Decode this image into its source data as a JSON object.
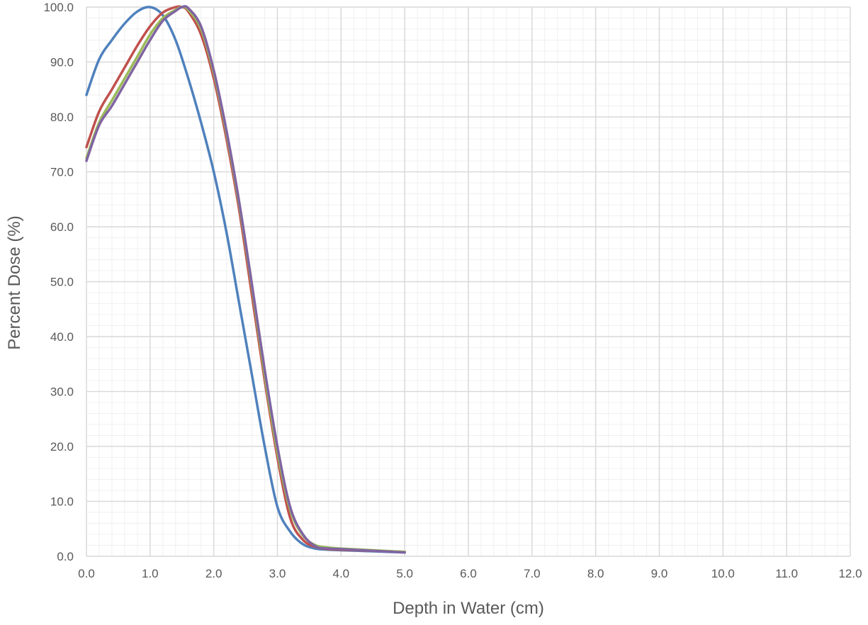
{
  "chart_data": {
    "type": "line",
    "title": "",
    "xlabel": "Depth in Water (cm)",
    "ylabel": "Percent Dose (%)",
    "xlim": [
      0,
      12
    ],
    "ylim": [
      0,
      100
    ],
    "x_ticks": [
      0,
      1,
      2,
      3,
      4,
      5,
      6,
      7,
      8,
      9,
      10,
      11,
      12
    ],
    "y_ticks": [
      0,
      10,
      20,
      30,
      40,
      50,
      60,
      70,
      80,
      90,
      100
    ],
    "x_tick_labels": [
      "0.0",
      "1.0",
      "2.0",
      "3.0",
      "4.0",
      "5.0",
      "6.0",
      "7.0",
      "8.0",
      "9.0",
      "10.0",
      "11.0",
      "12.0"
    ],
    "y_tick_labels": [
      "0.0",
      "10.0",
      "20.0",
      "30.0",
      "40.0",
      "50.0",
      "60.0",
      "70.0",
      "80.0",
      "90.0",
      "100.0"
    ],
    "grid": "major and minor",
    "legend": "none",
    "series": [
      {
        "color": "#4F81BD",
        "x": [
          0.0,
          0.2,
          0.4,
          0.6,
          0.8,
          1.0,
          1.2,
          1.4,
          1.6,
          1.8,
          2.0,
          2.2,
          2.4,
          2.6,
          2.8,
          3.0,
          3.2,
          3.4,
          3.6,
          3.8,
          4.0,
          4.5,
          5.0
        ],
        "y": [
          84.0,
          90.5,
          94.0,
          97.0,
          99.2,
          100.0,
          98.5,
          94.0,
          87.0,
          79.0,
          70.0,
          59.0,
          46.0,
          33.0,
          20.0,
          9.0,
          4.5,
          2.2,
          1.4,
          1.2,
          1.1,
          0.9,
          0.7
        ]
      },
      {
        "color": "#C0504D",
        "x": [
          0.0,
          0.2,
          0.4,
          0.6,
          0.8,
          1.0,
          1.2,
          1.4,
          1.5,
          1.6,
          1.8,
          2.0,
          2.2,
          2.4,
          2.6,
          2.8,
          3.0,
          3.2,
          3.4,
          3.6,
          3.8,
          4.0,
          4.5,
          5.0
        ],
        "y": [
          74.5,
          81.0,
          85.0,
          89.0,
          93.0,
          96.5,
          99.0,
          100.0,
          100.0,
          99.2,
          95.0,
          87.0,
          76.0,
          63.0,
          47.5,
          32.0,
          18.0,
          7.0,
          3.0,
          1.7,
          1.3,
          1.2,
          1.0,
          0.8
        ]
      },
      {
        "color": "#9BBB59",
        "x": [
          0.0,
          0.2,
          0.4,
          0.6,
          0.8,
          1.0,
          1.2,
          1.4,
          1.5,
          1.6,
          1.8,
          2.0,
          2.2,
          2.4,
          2.6,
          2.8,
          3.0,
          3.2,
          3.4,
          3.6,
          3.8,
          4.0,
          4.5,
          5.0
        ],
        "y": [
          72.5,
          79.0,
          83.0,
          87.0,
          91.0,
          95.0,
          98.0,
          99.5,
          100.0,
          99.5,
          96.0,
          88.0,
          77.0,
          64.0,
          49.0,
          33.0,
          19.0,
          8.5,
          3.8,
          2.0,
          1.6,
          1.4,
          1.1,
          0.8
        ]
      },
      {
        "color": "#8064A2",
        "x": [
          0.0,
          0.2,
          0.4,
          0.6,
          0.8,
          1.0,
          1.2,
          1.4,
          1.5,
          1.6,
          1.8,
          2.0,
          2.2,
          2.4,
          2.6,
          2.8,
          3.0,
          3.2,
          3.4,
          3.6,
          3.8,
          4.0,
          4.5,
          5.0
        ],
        "y": [
          72.0,
          78.5,
          82.0,
          86.0,
          90.0,
          94.0,
          97.5,
          99.3,
          100.0,
          99.8,
          96.5,
          88.5,
          77.5,
          64.5,
          49.5,
          34.0,
          20.0,
          9.0,
          4.0,
          1.8,
          1.4,
          1.3,
          1.0,
          0.7
        ]
      }
    ]
  }
}
